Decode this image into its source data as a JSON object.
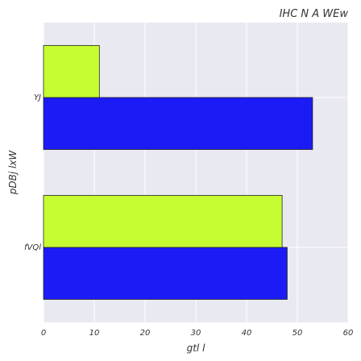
{
  "chart_data": {
    "type": "bar",
    "orientation": "horizontal",
    "title": "IHC N A WEw",
    "xlabel": "gtl l",
    "ylabel": "pDBj lxW",
    "categories": [
      "fVQl",
      "YJ"
    ],
    "series": [
      {
        "values": [
          48,
          53
        ],
        "color": "#1b1bf5"
      },
      {
        "values": [
          47,
          11
        ],
        "color": "#c6fd32"
      }
    ],
    "xlim": [
      0,
      60
    ],
    "xticks": [
      "0",
      "10",
      "20",
      "30",
      "40",
      "50",
      "60"
    ],
    "grid": true,
    "background": "#e9e9f1",
    "grid_color": "#ffffff"
  }
}
